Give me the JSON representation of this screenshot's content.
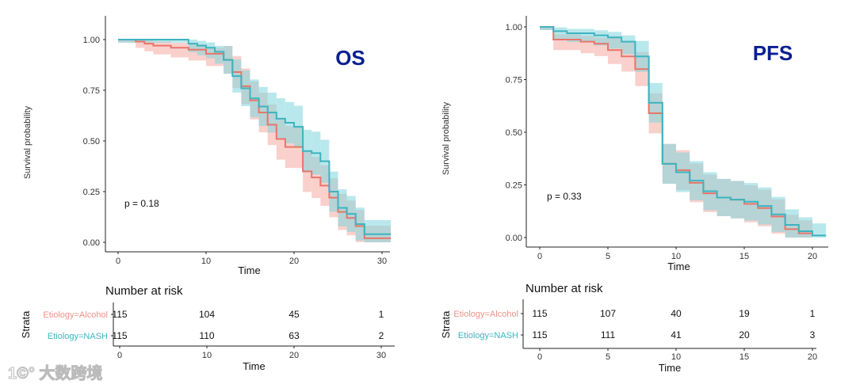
{
  "chart_data": [
    {
      "type": "line",
      "subtype": "kaplan-meier",
      "title": "OS",
      "xlabel": "Time",
      "ylabel": "Survival probability",
      "xlim": [
        0,
        31
      ],
      "ylim": [
        0,
        1
      ],
      "xticks": [
        0,
        10,
        20,
        30
      ],
      "yticks": [
        "0.00",
        "0.25",
        "0.50",
        "0.75",
        "1.00"
      ],
      "grid": false,
      "p_value_label": "p = 0.18",
      "series": [
        {
          "name": "Etiology=Alcohol",
          "color": "#e8756a",
          "steps": [
            [
              0,
              1.0
            ],
            [
              2,
              0.99
            ],
            [
              3,
              0.98
            ],
            [
              4,
              0.97
            ],
            [
              6,
              0.96
            ],
            [
              8,
              0.95
            ],
            [
              10,
              0.93
            ],
            [
              12,
              0.9
            ],
            [
              13,
              0.84
            ],
            [
              14,
              0.77
            ],
            [
              15,
              0.7
            ],
            [
              16,
              0.64
            ],
            [
              17,
              0.58
            ],
            [
              18,
              0.51
            ],
            [
              19,
              0.47
            ],
            [
              21,
              0.35
            ],
            [
              22,
              0.32
            ],
            [
              23,
              0.28
            ],
            [
              24,
              0.22
            ],
            [
              25,
              0.15
            ],
            [
              26,
              0.12
            ],
            [
              27,
              0.08
            ],
            [
              28,
              0.02
            ]
          ],
          "end": 31
        },
        {
          "name": "Etiology=NASH",
          "color": "#3cb4bf",
          "steps": [
            [
              0,
              1.0
            ],
            [
              8,
              0.98
            ],
            [
              9,
              0.97
            ],
            [
              10,
              0.96
            ],
            [
              11,
              0.94
            ],
            [
              12,
              0.9
            ],
            [
              13,
              0.82
            ],
            [
              14,
              0.76
            ],
            [
              15,
              0.71
            ],
            [
              16,
              0.67
            ],
            [
              17,
              0.64
            ],
            [
              18,
              0.61
            ],
            [
              19,
              0.59
            ],
            [
              20,
              0.57
            ],
            [
              21,
              0.45
            ],
            [
              22,
              0.44
            ],
            [
              23,
              0.4
            ],
            [
              24,
              0.25
            ],
            [
              25,
              0.17
            ],
            [
              26,
              0.14
            ],
            [
              27,
              0.09
            ],
            [
              28,
              0.04
            ]
          ],
          "end": 31
        }
      ],
      "risk_table": {
        "title": "Number at risk",
        "ylabel": "Strata",
        "xlabel": "Time",
        "times": [
          0,
          10,
          20,
          30
        ],
        "rows": [
          {
            "label": "Etiology=Alcohol",
            "counts": [
              "115",
              "104",
              "45",
              "1"
            ]
          },
          {
            "label": "Etiology=NASH",
            "counts": [
              "115",
              "110",
              "63",
              "2"
            ]
          }
        ]
      }
    },
    {
      "type": "line",
      "subtype": "kaplan-meier",
      "title": "PFS",
      "xlabel": "Time",
      "ylabel": "Survival probability",
      "xlim": [
        0,
        21
      ],
      "ylim": [
        0,
        1
      ],
      "xticks": [
        0,
        5,
        10,
        15,
        20
      ],
      "yticks": [
        "0.00",
        "0.25",
        "0.50",
        "0.75",
        "1.00"
      ],
      "grid": false,
      "p_value_label": "p = 0.33",
      "series": [
        {
          "name": "Etiology=Alcohol",
          "color": "#e8756a",
          "steps": [
            [
              0,
              1.0
            ],
            [
              1,
              0.94
            ],
            [
              3,
              0.93
            ],
            [
              4,
              0.92
            ],
            [
              5,
              0.89
            ],
            [
              6,
              0.86
            ],
            [
              7,
              0.8
            ],
            [
              8,
              0.59
            ],
            [
              9,
              0.35
            ],
            [
              10,
              0.32
            ],
            [
              11,
              0.26
            ],
            [
              12,
              0.21
            ],
            [
              13,
              0.19
            ],
            [
              14,
              0.18
            ],
            [
              15,
              0.16
            ],
            [
              16,
              0.14
            ],
            [
              17,
              0.1
            ],
            [
              18,
              0.04
            ],
            [
              19,
              0.02
            ],
            [
              20,
              0.01
            ]
          ],
          "end": 20
        },
        {
          "name": "Etiology=NASH",
          "color": "#3cb4bf",
          "steps": [
            [
              0,
              1.0
            ],
            [
              1,
              0.98
            ],
            [
              2,
              0.97
            ],
            [
              4,
              0.96
            ],
            [
              5,
              0.95
            ],
            [
              6,
              0.93
            ],
            [
              7,
              0.86
            ],
            [
              8,
              0.64
            ],
            [
              9,
              0.35
            ],
            [
              10,
              0.31
            ],
            [
              11,
              0.27
            ],
            [
              12,
              0.22
            ],
            [
              13,
              0.19
            ],
            [
              14,
              0.18
            ],
            [
              15,
              0.17
            ],
            [
              16,
              0.15
            ],
            [
              17,
              0.11
            ],
            [
              18,
              0.06
            ],
            [
              19,
              0.03
            ],
            [
              20,
              0.01
            ]
          ],
          "end": 21
        }
      ],
      "risk_table": {
        "title": "Number at risk",
        "ylabel": "Strata",
        "xlabel": "Time",
        "times": [
          0,
          5,
          10,
          15,
          20
        ],
        "rows": [
          {
            "label": "Etiology=Alcohol",
            "counts": [
              "115",
              "107",
              "40",
              "19",
              "1"
            ]
          },
          {
            "label": "Etiology=NASH",
            "counts": [
              "115",
              "111",
              "41",
              "20",
              "3"
            ]
          }
        ]
      }
    }
  ],
  "watermark": "1©° 大数跨境",
  "colors": {
    "alcohol_band": "#f4a9a2",
    "nash_band": "#7fd6dd",
    "title": "#0a1f8f"
  }
}
